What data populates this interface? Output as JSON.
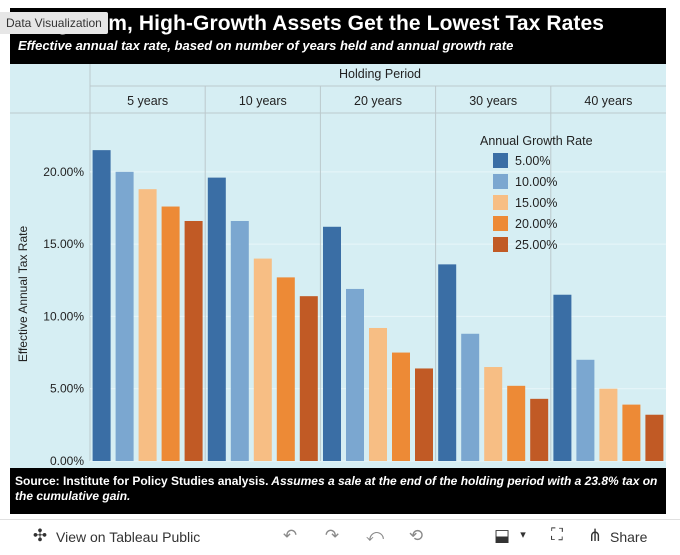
{
  "header": {
    "title": "Long-Term, High-Growth Assets Get the Lowest Tax Rates",
    "subtitle": "Effective annual tax rate, based on number of years held and annual growth rate",
    "tag": "Data Visualization"
  },
  "chart_data": {
    "type": "bar",
    "column_header": "Holding Period",
    "categories": [
      "5 years",
      "10 years",
      "20 years",
      "30 years",
      "40 years"
    ],
    "ylabel": "Effective Annual Tax Rate",
    "ylim": [
      0,
      24
    ],
    "yticks": [
      "0.00%",
      "5.00%",
      "10.00%",
      "15.00%",
      "20.00%"
    ],
    "ytick_values": [
      0,
      5,
      10,
      15,
      20
    ],
    "grid": true,
    "legend_title": "Annual Growth Rate",
    "legend_position": "top-right",
    "series": [
      {
        "name": "5.00%",
        "color": "#3a6ea5",
        "values": [
          21.5,
          19.6,
          16.2,
          13.6,
          11.5
        ]
      },
      {
        "name": "10.00%",
        "color": "#7ba7d0",
        "values": [
          20.0,
          16.6,
          11.9,
          8.8,
          7.0
        ]
      },
      {
        "name": "15.00%",
        "color": "#f7be84",
        "values": [
          18.8,
          14.0,
          9.2,
          6.5,
          5.0
        ]
      },
      {
        "name": "20.00%",
        "color": "#ed8a36",
        "values": [
          17.6,
          12.7,
          7.5,
          5.2,
          3.9
        ]
      },
      {
        "name": "25.00%",
        "color": "#c15a25",
        "values": [
          16.6,
          11.4,
          6.4,
          4.3,
          3.2
        ]
      }
    ],
    "background": "#d6eef3"
  },
  "footer": {
    "source_bold": "Source: Institute for Policy Studies analysis.",
    "source_italic": " Assumes a sale at the end of the holding period with a 23.8% tax on the cumulative gain."
  },
  "toolbar": {
    "view_label": "View on Tableau Public",
    "share_label": "Share",
    "view_icon": "tableau-icon",
    "undo_icon": "undo-icon",
    "redo_icon": "redo-icon",
    "revert_icon": "revert-icon",
    "refresh_icon": "refresh-icon",
    "download_icon": "download-icon",
    "fullscreen_icon": "fullscreen-icon",
    "share_icon": "share-icon"
  }
}
